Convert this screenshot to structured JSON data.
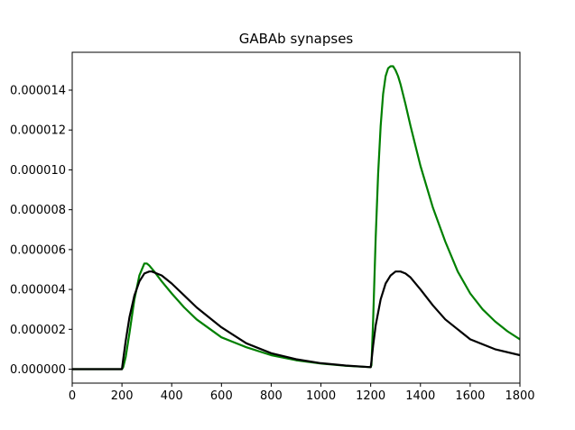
{
  "chart_data": {
    "type": "line",
    "title": "GABAb synapses",
    "xlabel": "",
    "ylabel": "",
    "xlim": [
      0,
      1800
    ],
    "ylim": [
      -7e-07,
      1.59e-05
    ],
    "xticks": [
      0,
      200,
      400,
      600,
      800,
      1000,
      1200,
      1400,
      1600,
      1800
    ],
    "xtick_labels": [
      "0",
      "200",
      "400",
      "600",
      "800",
      "1000",
      "1200",
      "1400",
      "1600",
      "1800"
    ],
    "yticks": [
      0,
      2e-06,
      4e-06,
      6e-06,
      8e-06,
      1e-05,
      1.2e-05,
      1.4e-05
    ],
    "ytick_labels": [
      "0.000000",
      "0.000002",
      "0.000004",
      "0.000006",
      "0.000008",
      "0.000010",
      "0.000012",
      "0.000014"
    ],
    "grid": false,
    "legend": "none",
    "series": [
      {
        "color": "#008000",
        "x": [
          0,
          150,
          200,
          205,
          215,
          230,
          250,
          270,
          290,
          300,
          310,
          330,
          360,
          400,
          450,
          500,
          600,
          700,
          800,
          900,
          1000,
          1100,
          1200,
          1203,
          1210,
          1220,
          1230,
          1240,
          1250,
          1260,
          1270,
          1280,
          1290,
          1300,
          1310,
          1320,
          1340,
          1360,
          1400,
          1450,
          1500,
          1550,
          1600,
          1650,
          1700,
          1750,
          1800
        ],
        "y": [
          0,
          0,
          0,
          1e-07,
          6e-07,
          1.8e-06,
          3.5e-06,
          4.7e-06,
          5.3e-06,
          5.3e-06,
          5.2e-06,
          4.9e-06,
          4.4e-06,
          3.8e-06,
          3.1e-06,
          2.5e-06,
          1.6e-06,
          1.1e-06,
          7e-07,
          4.5e-07,
          2.8e-07,
          1.7e-07,
          1e-07,
          2e-07,
          2.5e-06,
          6.6e-06,
          9.8e-06,
          1.22e-05,
          1.38e-05,
          1.47e-05,
          1.51e-05,
          1.52e-05,
          1.52e-05,
          1.5e-05,
          1.47e-05,
          1.43e-05,
          1.33e-05,
          1.22e-05,
          1.02e-05,
          8.1e-06,
          6.4e-06,
          4.9e-06,
          3.8e-06,
          3e-06,
          2.4e-06,
          1.9e-06,
          1.5e-06
        ]
      },
      {
        "color": "#000000",
        "x": [
          0,
          150,
          200,
          205,
          215,
          230,
          250,
          270,
          290,
          310,
          320,
          340,
          360,
          400,
          450,
          500,
          600,
          700,
          800,
          900,
          1000,
          1100,
          1200,
          1203,
          1210,
          1220,
          1240,
          1260,
          1280,
          1300,
          1320,
          1340,
          1360,
          1400,
          1450,
          1500,
          1600,
          1700,
          1800
        ],
        "y": [
          0,
          0,
          0,
          5e-07,
          1.4e-06,
          2.6e-06,
          3.7e-06,
          4.4e-06,
          4.8e-06,
          4.9e-06,
          4.9e-06,
          4.8e-06,
          4.7e-06,
          4.3e-06,
          3.7e-06,
          3.1e-06,
          2.1e-06,
          1.3e-06,
          8e-07,
          5e-07,
          3e-07,
          1.8e-07,
          1e-07,
          4e-07,
          1.2e-06,
          2.2e-06,
          3.5e-06,
          4.3e-06,
          4.7e-06,
          4.9e-06,
          4.9e-06,
          4.8e-06,
          4.6e-06,
          4e-06,
          3.2e-06,
          2.5e-06,
          1.5e-06,
          1e-06,
          7e-07
        ]
      }
    ]
  }
}
